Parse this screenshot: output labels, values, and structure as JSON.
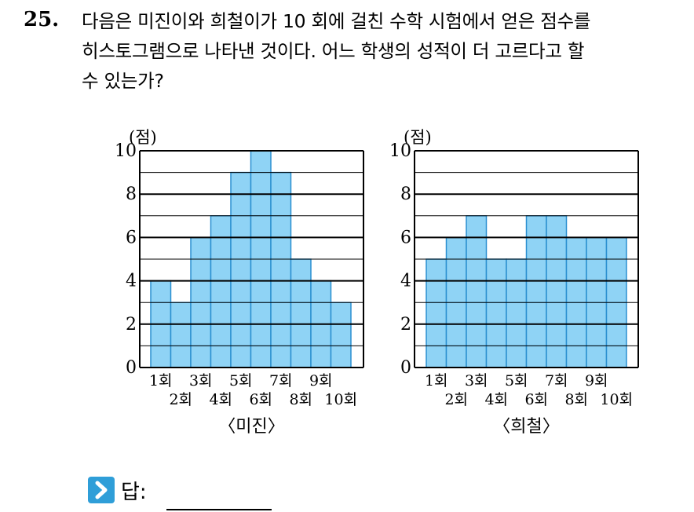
{
  "question": {
    "number": "25.",
    "lines": [
      "다음은 미진이와 희철이가 10 회에 걸친 수학 시험에서 얻은 점수를",
      "히스토그램으로 나타낸 것이다. 어느 학생의 성적이 더 고르다고 할",
      "수 있는가?"
    ]
  },
  "colors": {
    "bar_fill": "#8fd3f5",
    "bar_stroke": "#2a8fd0",
    "answer_icon": "#2f9ed8"
  },
  "chart_data": [
    {
      "type": "bar",
      "title": "〈미진〉",
      "ylabel": "(점)",
      "ylim": [
        0,
        10
      ],
      "yticks": [
        "0",
        "2",
        "4",
        "6",
        "8",
        "10"
      ],
      "categories": [
        "1회",
        "2회",
        "3회",
        "4회",
        "5회",
        "6회",
        "7회",
        "8회",
        "9회",
        "10회"
      ],
      "values": [
        4,
        3,
        6,
        7,
        9,
        10,
        9,
        5,
        4,
        3
      ],
      "grid": true
    },
    {
      "type": "bar",
      "title": "〈희철〉",
      "ylabel": "(점)",
      "ylim": [
        0,
        10
      ],
      "yticks": [
        "0",
        "2",
        "4",
        "6",
        "8",
        "10"
      ],
      "categories": [
        "1회",
        "2회",
        "3회",
        "4회",
        "5회",
        "6회",
        "7회",
        "8회",
        "9회",
        "10회"
      ],
      "values": [
        5,
        6,
        7,
        5,
        5,
        7,
        7,
        6,
        6,
        6
      ],
      "grid": true
    }
  ],
  "answer": {
    "icon": "chevron-right-icon",
    "label": "답:"
  }
}
